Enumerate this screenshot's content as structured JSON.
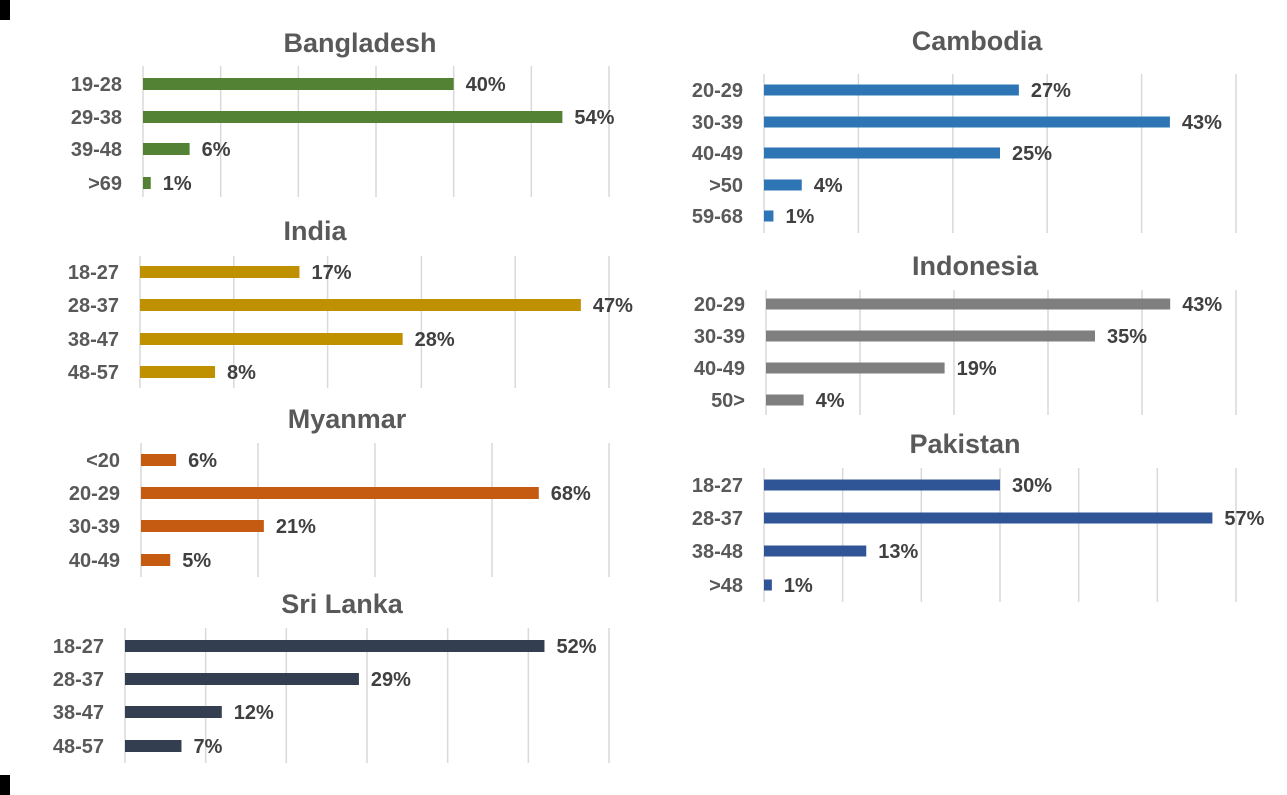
{
  "chart_data": [
    {
      "type": "bar",
      "orientation": "horizontal",
      "title": "Bangladesh",
      "color": "#548235",
      "categories": [
        "19-28",
        "29-38",
        "39-48",
        ">69"
      ],
      "values": [
        40,
        54,
        6,
        1
      ],
      "xlim": [
        0,
        60
      ],
      "tick_step": 10,
      "grid": true,
      "unit": "%"
    },
    {
      "type": "bar",
      "orientation": "horizontal",
      "title": "India",
      "color": "#bf9000",
      "categories": [
        "18-27",
        "28-37",
        "38-47",
        "48-57"
      ],
      "values": [
        17,
        47,
        28,
        8
      ],
      "xlim": [
        0,
        50
      ],
      "tick_step": 10,
      "grid": true,
      "unit": "%"
    },
    {
      "type": "bar",
      "orientation": "horizontal",
      "title": "Myanmar",
      "color": "#c55a11",
      "categories": [
        "<20",
        "20-29",
        "30-39",
        "40-49"
      ],
      "values": [
        6,
        68,
        21,
        5
      ],
      "xlim": [
        0,
        80
      ],
      "tick_step": 20,
      "grid": true,
      "unit": "%"
    },
    {
      "type": "bar",
      "orientation": "horizontal",
      "title": "Sri Lanka",
      "color": "#333f50",
      "categories": [
        "18-27",
        "28-37",
        "38-47",
        "48-57"
      ],
      "values": [
        52,
        29,
        12,
        7
      ],
      "xlim": [
        0,
        60
      ],
      "tick_step": 10,
      "grid": true,
      "unit": "%"
    },
    {
      "type": "bar",
      "orientation": "horizontal",
      "title": "Cambodia",
      "color": "#2e75b6",
      "categories": [
        "20-29",
        "30-39",
        "40-49",
        ">50",
        "59-68"
      ],
      "values": [
        27,
        43,
        25,
        4,
        1
      ],
      "xlim": [
        0,
        50
      ],
      "tick_step": 10,
      "grid": true,
      "unit": "%"
    },
    {
      "type": "bar",
      "orientation": "horizontal",
      "title": "Indonesia",
      "color": "#7f7f7f",
      "categories": [
        "20-29",
        "30-39",
        "40-49",
        "50>"
      ],
      "values": [
        43,
        35,
        19,
        4
      ],
      "xlim": [
        0,
        50
      ],
      "tick_step": 10,
      "grid": true,
      "unit": "%"
    },
    {
      "type": "bar",
      "orientation": "horizontal",
      "title": "Pakistan",
      "color": "#2f5597",
      "categories": [
        "18-27",
        "28-37",
        "38-48",
        ">48"
      ],
      "values": [
        30,
        57,
        13,
        1
      ],
      "xlim": [
        0,
        60
      ],
      "tick_step": 10,
      "grid": true,
      "unit": "%"
    }
  ]
}
